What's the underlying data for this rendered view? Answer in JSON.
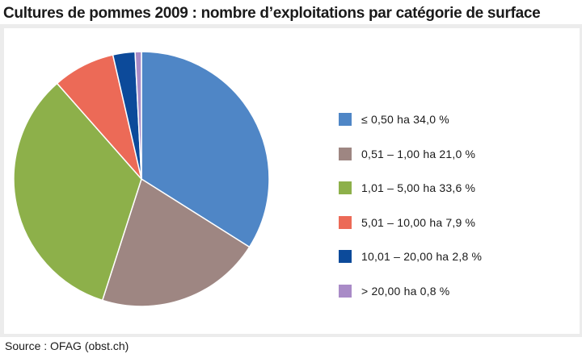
{
  "chart_data": {
    "type": "pie",
    "title": "Cultures de pommes 2009 : nombre d’exploitations par catégorie de surface",
    "source": "Source : OFAG (obst.ch)",
    "legend_position": "right",
    "start_angle_deg": 0,
    "direction": "clockwise",
    "slices": [
      {
        "label": "≤ 0,50 ha 34,0 %",
        "value": 34.0,
        "color": "#4f86c6"
      },
      {
        "label": "0,51 – 1,00 ha 21,0 %",
        "value": 21.0,
        "color": "#9e8682"
      },
      {
        "label": "1,01 – 5,00 ha 33,6 %",
        "value": 33.6,
        "color": "#8db04a"
      },
      {
        "label": "5,01 – 10,00 ha 7,9 %",
        "value": 7.9,
        "color": "#ec6a57"
      },
      {
        "label": "10,01 – 20,00 ha 2,8 %",
        "value": 2.8,
        "color": "#0c4a9a"
      },
      {
        "label": "> 20,00 ha 0,8 %",
        "value": 0.8,
        "color": "#a98bc7"
      }
    ]
  }
}
